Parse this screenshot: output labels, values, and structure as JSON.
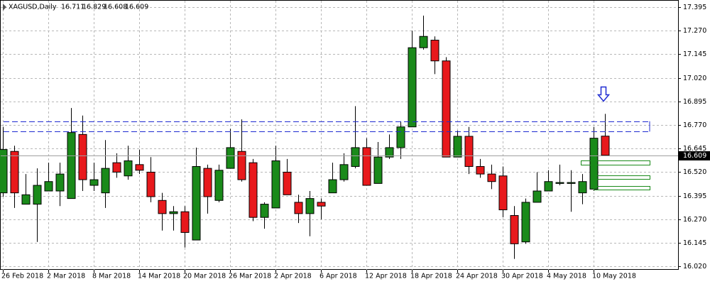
{
  "chart_data": {
    "type": "candlestick",
    "title": "XAGUSD,Daily",
    "categories": [
      "26 Feb 2018",
      null,
      null,
      null,
      "2 Mar 2018",
      null,
      null,
      null,
      "8 Mar 2018",
      null,
      null,
      null,
      "14 Mar 2018",
      null,
      null,
      null,
      "20 Mar 2018",
      null,
      null,
      null,
      "26 Mar 2018",
      null,
      null,
      null,
      "2 Apr 2018",
      null,
      null,
      null,
      "6 Apr 2018",
      null,
      null,
      null,
      "12 Apr 2018",
      null,
      null,
      null,
      "18 Apr 2018",
      null,
      null,
      null,
      "24 Apr 2018",
      null,
      null,
      null,
      "30 Apr 2018",
      null,
      null,
      null,
      "4 May 2018",
      null,
      null,
      null,
      "10 May 2018",
      null
    ],
    "open": [
      16.41,
      16.63,
      16.35,
      16.35,
      16.42,
      16.42,
      16.38,
      16.72,
      16.45,
      16.41,
      16.57,
      16.5,
      16.56,
      16.52,
      16.37,
      16.3,
      16.31,
      16.16,
      16.54,
      16.37,
      16.54,
      16.63,
      16.57,
      16.28,
      16.33,
      16.52,
      16.36,
      16.3,
      16.36,
      16.41,
      16.48,
      16.55,
      16.65,
      16.46,
      16.6,
      16.65,
      16.76,
      17.18,
      17.22,
      17.11,
      16.6,
      16.71,
      16.55,
      16.51,
      16.5,
      16.29,
      16.15,
      16.36,
      16.42,
      16.46,
      16.46,
      16.41,
      16.43,
      16.711
    ],
    "high": [
      16.76,
      16.66,
      16.51,
      16.54,
      16.57,
      16.57,
      16.86,
      16.82,
      16.57,
      16.69,
      16.62,
      16.66,
      16.64,
      16.6,
      16.41,
      16.34,
      16.34,
      16.65,
      16.56,
      16.56,
      16.75,
      16.8,
      16.59,
      16.36,
      16.66,
      16.59,
      16.4,
      16.42,
      16.38,
      16.57,
      16.62,
      16.87,
      16.7,
      16.68,
      16.72,
      16.79,
      17.27,
      17.35,
      17.24,
      17.13,
      16.74,
      16.76,
      16.59,
      16.56,
      16.55,
      16.34,
      16.38,
      16.52,
      16.53,
      16.56,
      16.53,
      16.51,
      16.76,
      16.829
    ],
    "low": [
      16.39,
      16.33,
      16.35,
      16.15,
      16.42,
      16.34,
      16.38,
      16.42,
      16.42,
      16.33,
      16.49,
      16.48,
      16.51,
      16.36,
      16.21,
      16.21,
      16.12,
      16.16,
      16.3,
      16.36,
      16.54,
      16.47,
      16.26,
      16.22,
      16.33,
      16.4,
      16.25,
      16.18,
      16.27,
      16.41,
      16.47,
      16.54,
      16.45,
      16.46,
      16.59,
      16.59,
      16.76,
      17.17,
      17.04,
      16.6,
      16.6,
      16.51,
      16.49,
      16.43,
      16.28,
      16.06,
      16.14,
      16.36,
      16.42,
      16.45,
      16.31,
      16.35,
      16.42,
      16.608
    ],
    "close": [
      16.64,
      16.41,
      16.4,
      16.45,
      16.47,
      16.51,
      16.73,
      16.48,
      16.48,
      16.54,
      16.52,
      16.58,
      16.53,
      16.39,
      16.3,
      16.31,
      16.2,
      16.55,
      16.39,
      16.53,
      16.65,
      16.48,
      16.28,
      16.35,
      16.58,
      16.4,
      16.3,
      16.38,
      16.34,
      16.48,
      16.56,
      16.65,
      16.45,
      16.6,
      16.65,
      16.76,
      17.18,
      17.24,
      17.11,
      16.6,
      16.71,
      16.55,
      16.51,
      16.47,
      16.32,
      16.14,
      16.36,
      16.42,
      16.47,
      16.465,
      16.465,
      16.47,
      16.7,
      16.609
    ],
    "up_color": "#1a8a1a",
    "down_color": "#e8191c",
    "levels": [
      16.79,
      16.735
    ],
    "level_color": "#1f2bd1",
    "ylim": [
      16.002,
      17.433
    ],
    "yticks": [
      {
        "value": 17.395,
        "label": "17.395"
      },
      {
        "value": 17.27,
        "label": "17.270"
      },
      {
        "value": 17.145,
        "label": "17.145"
      },
      {
        "value": 17.02,
        "label": "17.020"
      },
      {
        "value": 16.895,
        "label": "16.895"
      },
      {
        "value": 16.77,
        "label": "16.770"
      },
      {
        "value": 16.645,
        "label": "16.645"
      },
      {
        "value": 16.52,
        "label": "16.520"
      },
      {
        "value": 16.395,
        "label": "16.395"
      },
      {
        "value": 16.27,
        "label": "16.270"
      },
      {
        "value": 16.145,
        "label": "16.145"
      },
      {
        "value": 16.02,
        "label": "16.020"
      }
    ],
    "grid": true
  }
}
